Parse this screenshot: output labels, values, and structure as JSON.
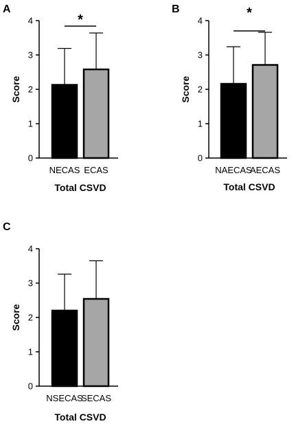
{
  "chart_data": [
    {
      "type": "bar",
      "panel_label": "A",
      "categories": [
        "NECAS",
        "ECAS"
      ],
      "values": [
        2.13,
        2.58
      ],
      "error_upper": [
        3.19,
        3.64
      ],
      "bar_colors": [
        "#000000",
        "#a6a6a6"
      ],
      "ylabel": "Score",
      "xlabel": "Total CSVD",
      "ylim": [
        0,
        4
      ],
      "yticks": [
        "0",
        "1",
        "2",
        "3",
        "4"
      ],
      "significance": "*"
    },
    {
      "type": "bar",
      "panel_label": "B",
      "categories": [
        "NAECAS",
        "AECAS"
      ],
      "values": [
        2.16,
        2.71
      ],
      "error_upper": [
        3.24,
        3.66
      ],
      "bar_colors": [
        "#000000",
        "#a6a6a6"
      ],
      "ylabel": "Score",
      "xlabel": "Total CSVD",
      "ylim": [
        0,
        4
      ],
      "yticks": [
        "0",
        "1",
        "2",
        "3",
        "4"
      ],
      "significance": "*"
    },
    {
      "type": "bar",
      "panel_label": "C",
      "categories": [
        "NSECAS",
        "SECAS"
      ],
      "values": [
        2.2,
        2.54
      ],
      "error_upper": [
        3.26,
        3.65
      ],
      "bar_colors": [
        "#000000",
        "#a6a6a6"
      ],
      "ylabel": "Score",
      "xlabel": "Total CSVD",
      "ylim": [
        0,
        4
      ],
      "yticks": [
        "0",
        "1",
        "2",
        "3",
        "4"
      ],
      "significance": ""
    }
  ]
}
